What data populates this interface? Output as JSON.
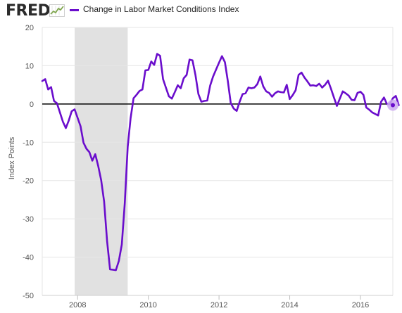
{
  "brand": {
    "logo_text": "FRED",
    "logo_icon": "fred-line-graph-icon"
  },
  "colors": {
    "series": "#6a0dcc",
    "zero_line": "#000000",
    "recession": "#e1e1e1",
    "grid": "#e6e6e6",
    "marker_halo": "#cdaaf0"
  },
  "chart_data": {
    "type": "line",
    "xlabel": "",
    "ylabel": "Index Points",
    "ylim": [
      -50,
      20
    ],
    "xlim": [
      "2007-01",
      "2016-12"
    ],
    "x_tick_labels": [
      "2008",
      "2010",
      "2012",
      "2014",
      "2016"
    ],
    "y_tick_labels": [
      "20",
      "10",
      "0",
      "-10",
      "-20",
      "-30",
      "-40",
      "-50"
    ],
    "grid": "horizontal",
    "legend": "top-left",
    "recession_shading": [
      [
        "2007-12",
        "2009-06"
      ]
    ],
    "series": [
      {
        "name": "Change in Labor Market Conditions Index",
        "points": [
          [
            "2007-01",
            6.0
          ],
          [
            "2007-02",
            6.5
          ],
          [
            "2007-03",
            3.8
          ],
          [
            "2007-04",
            4.4
          ],
          [
            "2007-05",
            0.8
          ],
          [
            "2007-06",
            0.2
          ],
          [
            "2007-07",
            -2.2
          ],
          [
            "2007-08",
            -4.6
          ],
          [
            "2007-09",
            -6.3
          ],
          [
            "2007-10",
            -4.3
          ],
          [
            "2007-11",
            -1.9
          ],
          [
            "2007-12",
            -1.4
          ],
          [
            "2008-01",
            -3.6
          ],
          [
            "2008-02",
            -5.8
          ],
          [
            "2008-03",
            -10.1
          ],
          [
            "2008-04",
            -11.7
          ],
          [
            "2008-05",
            -12.6
          ],
          [
            "2008-06",
            -14.8
          ],
          [
            "2008-07",
            -13.1
          ],
          [
            "2008-08",
            -16.2
          ],
          [
            "2008-09",
            -19.9
          ],
          [
            "2008-10",
            -25.5
          ],
          [
            "2008-11",
            -35.8
          ],
          [
            "2008-12",
            -43.2
          ],
          [
            "2009-01",
            -43.3
          ],
          [
            "2009-02",
            -43.4
          ],
          [
            "2009-03",
            -41.0
          ],
          [
            "2009-04",
            -36.7
          ],
          [
            "2009-05",
            -26.0
          ],
          [
            "2009-06",
            -11.2
          ],
          [
            "2009-07",
            -3.7
          ],
          [
            "2009-08",
            1.5
          ],
          [
            "2009-09",
            2.4
          ],
          [
            "2009-10",
            3.4
          ],
          [
            "2009-11",
            3.8
          ],
          [
            "2009-12",
            8.8
          ],
          [
            "2010-01",
            8.9
          ],
          [
            "2010-02",
            11.1
          ],
          [
            "2010-03",
            10.2
          ],
          [
            "2010-04",
            13.1
          ],
          [
            "2010-05",
            12.6
          ],
          [
            "2010-06",
            6.5
          ],
          [
            "2010-07",
            4.2
          ],
          [
            "2010-08",
            2.0
          ],
          [
            "2010-09",
            1.4
          ],
          [
            "2010-10",
            3.1
          ],
          [
            "2010-11",
            4.9
          ],
          [
            "2010-12",
            4.1
          ],
          [
            "2011-01",
            6.7
          ],
          [
            "2011-02",
            7.6
          ],
          [
            "2011-03",
            11.6
          ],
          [
            "2011-04",
            11.4
          ],
          [
            "2011-05",
            7.6
          ],
          [
            "2011-06",
            2.6
          ],
          [
            "2011-07",
            0.6
          ],
          [
            "2011-08",
            0.8
          ],
          [
            "2011-09",
            0.9
          ],
          [
            "2011-10",
            4.8
          ],
          [
            "2011-11",
            7.2
          ],
          [
            "2011-12",
            9.0
          ],
          [
            "2012-01",
            10.8
          ],
          [
            "2012-02",
            12.5
          ],
          [
            "2012-03",
            10.9
          ],
          [
            "2012-04",
            6.0
          ],
          [
            "2012-05",
            0.2
          ],
          [
            "2012-06",
            -1.2
          ],
          [
            "2012-07",
            -1.8
          ],
          [
            "2012-08",
            0.6
          ],
          [
            "2012-09",
            2.6
          ],
          [
            "2012-10",
            2.8
          ],
          [
            "2012-11",
            4.3
          ],
          [
            "2012-12",
            4.1
          ],
          [
            "2013-01",
            4.3
          ],
          [
            "2013-02",
            5.2
          ],
          [
            "2013-03",
            7.2
          ],
          [
            "2013-04",
            4.6
          ],
          [
            "2013-05",
            3.3
          ],
          [
            "2013-06",
            2.9
          ],
          [
            "2013-07",
            1.9
          ],
          [
            "2013-08",
            2.8
          ],
          [
            "2013-09",
            3.3
          ],
          [
            "2013-10",
            3.1
          ],
          [
            "2013-11",
            3.0
          ],
          [
            "2013-12",
            5.0
          ],
          [
            "2014-01",
            1.3
          ],
          [
            "2014-02",
            2.3
          ],
          [
            "2014-03",
            3.6
          ],
          [
            "2014-04",
            7.6
          ],
          [
            "2014-05",
            8.2
          ],
          [
            "2014-06",
            6.9
          ],
          [
            "2014-07",
            5.9
          ],
          [
            "2014-08",
            4.8
          ],
          [
            "2014-09",
            4.9
          ],
          [
            "2014-10",
            4.7
          ],
          [
            "2014-11",
            5.3
          ],
          [
            "2014-12",
            4.3
          ],
          [
            "2015-01",
            5.0
          ],
          [
            "2015-02",
            6.1
          ],
          [
            "2015-03",
            4.0
          ],
          [
            "2015-04",
            1.7
          ],
          [
            "2015-05",
            -0.5
          ],
          [
            "2015-06",
            1.4
          ],
          [
            "2015-07",
            3.3
          ],
          [
            "2015-08",
            2.8
          ],
          [
            "2015-09",
            2.2
          ],
          [
            "2015-10",
            1.1
          ],
          [
            "2015-11",
            1.0
          ],
          [
            "2015-12",
            2.9
          ],
          [
            "2016-01",
            3.2
          ],
          [
            "2016-02",
            2.4
          ],
          [
            "2016-03",
            -0.9
          ],
          [
            "2016-04",
            -1.5
          ],
          [
            "2016-05",
            -2.2
          ],
          [
            "2016-06",
            -2.6
          ],
          [
            "2016-07",
            -3.0
          ],
          [
            "2016-08",
            0.6
          ],
          [
            "2016-09",
            1.7
          ],
          [
            "2016-10",
            0.0
          ],
          [
            "2016-11",
            0.0
          ],
          [
            "2016-12",
            1.5
          ],
          [
            "2017-01",
            2.1
          ],
          [
            "2017-02",
            -0.3
          ]
        ]
      }
    ]
  }
}
